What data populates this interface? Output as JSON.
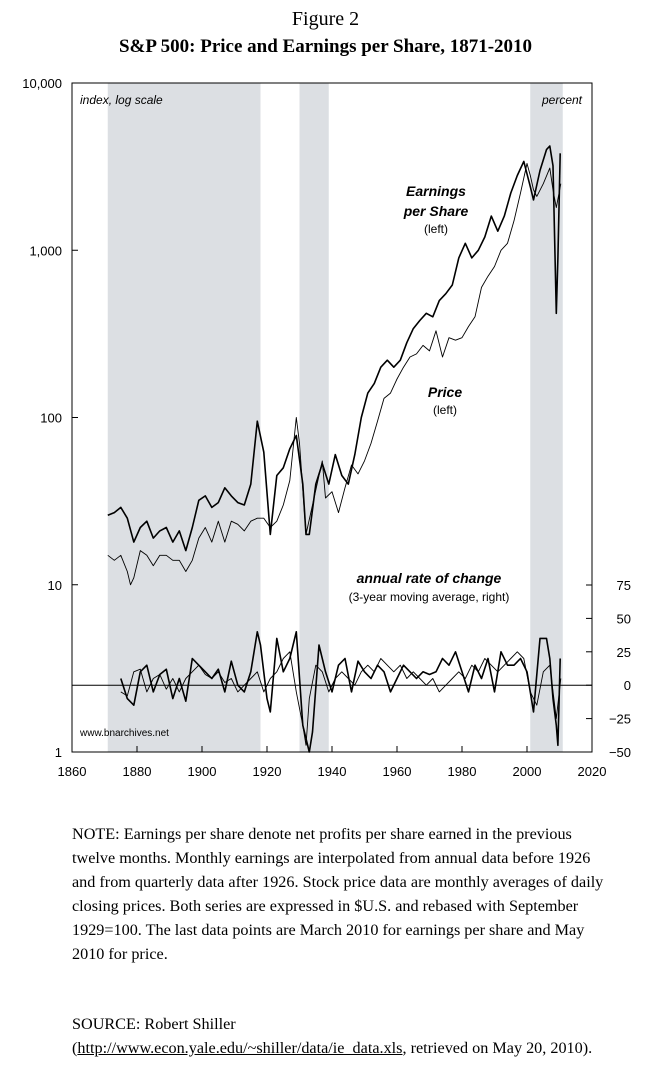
{
  "figure_label": "Figure 2",
  "title": "S&P 500: Price and Earnings per Share, 1871-2010",
  "chart_data": {
    "type": "line",
    "title": "S&P 500: Price and Earnings per Share, 1871-2010",
    "left_axis": {
      "label": "index, log scale",
      "scale": "log",
      "range": [
        1,
        10000
      ],
      "ticks": [
        1,
        10,
        100,
        1000,
        10000
      ],
      "tick_labels": [
        "1",
        "10",
        "100",
        "1,000",
        "10,000"
      ]
    },
    "right_axis": {
      "label": "percent",
      "range": [
        -50,
        75
      ],
      "ticks": [
        -50,
        -25,
        0,
        25,
        50,
        75
      ],
      "tick_labels": [
        "−50",
        "−25",
        "0",
        "25",
        "50",
        "75"
      ]
    },
    "x_axis": {
      "range": [
        1860,
        2020
      ],
      "ticks": [
        1860,
        1880,
        1900,
        1920,
        1940,
        1960,
        1980,
        2000,
        2020
      ],
      "tick_labels": [
        "1860",
        "1880",
        "1900",
        "1920",
        "1940",
        "1960",
        "1980",
        "2000",
        "2020"
      ]
    },
    "shaded_periods": [
      [
        1871,
        1918
      ],
      [
        1930,
        1939
      ],
      [
        2001,
        2011
      ]
    ],
    "series_labels": {
      "earnings": [
        "Earnings",
        "per Share",
        "(left)"
      ],
      "price": [
        "Price",
        "(left)"
      ],
      "rate": [
        "annual rate of change",
        "(3-year moving average, right)"
      ]
    },
    "series": [
      {
        "name": "Earnings per Share",
        "axis": "left",
        "x": [
          1871,
          1873,
          1875,
          1877,
          1879,
          1881,
          1883,
          1885,
          1887,
          1889,
          1891,
          1893,
          1895,
          1897,
          1899,
          1901,
          1903,
          1905,
          1907,
          1909,
          1911,
          1913,
          1915,
          1917,
          1919,
          1921,
          1923,
          1925,
          1927,
          1929,
          1931,
          1932,
          1933,
          1935,
          1937,
          1939,
          1941,
          1943,
          1945,
          1947,
          1949,
          1951,
          1953,
          1955,
          1957,
          1959,
          1961,
          1963,
          1965,
          1967,
          1969,
          1971,
          1973,
          1975,
          1977,
          1979,
          1981,
          1983,
          1985,
          1987,
          1989,
          1991,
          1993,
          1995,
          1997,
          1999,
          2001,
          2002,
          2004,
          2006,
          2007,
          2008,
          2009,
          2009.5,
          2010.2
        ],
        "values": [
          26,
          27,
          29,
          25,
          18,
          22,
          24,
          19,
          21,
          22,
          18,
          21,
          16,
          22,
          32,
          34,
          29,
          31,
          38,
          34,
          31,
          30,
          40,
          95,
          62,
          20,
          45,
          50,
          65,
          78,
          40,
          20,
          20,
          40,
          53,
          40,
          60,
          45,
          40,
          60,
          100,
          140,
          160,
          200,
          220,
          200,
          220,
          280,
          340,
          380,
          420,
          400,
          500,
          550,
          620,
          900,
          1100,
          900,
          1000,
          1200,
          1600,
          1300,
          1600,
          2200,
          2800,
          3400,
          2400,
          2000,
          3000,
          4000,
          4200,
          3200,
          420,
          900,
          3800
        ]
      },
      {
        "name": "Price",
        "axis": "left",
        "x": [
          1871,
          1873,
          1875,
          1877,
          1878,
          1879,
          1881,
          1883,
          1885,
          1887,
          1889,
          1891,
          1893,
          1895,
          1897,
          1899,
          1901,
          1903,
          1905,
          1907,
          1909,
          1911,
          1913,
          1915,
          1917,
          1919,
          1921,
          1923,
          1925,
          1927,
          1929,
          1930,
          1932,
          1934,
          1936,
          1937,
          1938,
          1940,
          1942,
          1944,
          1946,
          1948,
          1950,
          1952,
          1954,
          1956,
          1958,
          1960,
          1962,
          1964,
          1966,
          1968,
          1970,
          1972,
          1974,
          1976,
          1978,
          1980,
          1982,
          1984,
          1986,
          1988,
          1990,
          1992,
          1994,
          1996,
          1998,
          2000,
          2001,
          2002,
          2003,
          2005,
          2007,
          2008,
          2009,
          2010.4
        ],
        "values": [
          15,
          14,
          15,
          12,
          10,
          11,
          16,
          15,
          13,
          15,
          15,
          14,
          14,
          12,
          14,
          19,
          22,
          18,
          24,
          18,
          24,
          23,
          21,
          24,
          25,
          25,
          22,
          24,
          30,
          42,
          100,
          70,
          20,
          30,
          45,
          55,
          33,
          36,
          27,
          38,
          52,
          46,
          55,
          70,
          95,
          130,
          140,
          170,
          200,
          230,
          240,
          270,
          250,
          330,
          230,
          300,
          290,
          300,
          350,
          400,
          600,
          700,
          800,
          1000,
          1100,
          1500,
          2200,
          3300,
          2800,
          2300,
          2100,
          2500,
          3100,
          2300,
          1800,
          2500
        ]
      },
      {
        "name": "Earnings annual rate of change",
        "axis": "right",
        "x": [
          1875,
          1877,
          1879,
          1881,
          1883,
          1885,
          1887,
          1889,
          1891,
          1893,
          1895,
          1897,
          1899,
          1901,
          1903,
          1905,
          1907,
          1909,
          1911,
          1913,
          1915,
          1917,
          1918,
          1920,
          1921,
          1923,
          1925,
          1927,
          1929,
          1931,
          1932,
          1933,
          1934,
          1936,
          1938,
          1940,
          1942,
          1944,
          1946,
          1948,
          1950,
          1952,
          1954,
          1956,
          1958,
          1960,
          1962,
          1964,
          1966,
          1968,
          1970,
          1972,
          1974,
          1976,
          1978,
          1980,
          1982,
          1984,
          1986,
          1988,
          1990,
          1992,
          1994,
          1996,
          1998,
          2000,
          2002,
          2004,
          2006,
          2007,
          2008,
          2009,
          2009.5,
          2010.2
        ],
        "values": [
          5,
          -10,
          -15,
          10,
          15,
          -5,
          8,
          12,
          -10,
          5,
          -12,
          20,
          15,
          10,
          5,
          12,
          -5,
          18,
          0,
          -5,
          10,
          40,
          30,
          -10,
          -20,
          35,
          10,
          20,
          40,
          -30,
          -40,
          -50,
          -35,
          30,
          10,
          -5,
          15,
          20,
          -5,
          18,
          10,
          5,
          15,
          10,
          -5,
          5,
          15,
          10,
          5,
          10,
          8,
          10,
          20,
          15,
          25,
          10,
          -5,
          15,
          5,
          20,
          -5,
          25,
          15,
          15,
          20,
          10,
          -20,
          35,
          35,
          20,
          -10,
          -30,
          -45,
          20
        ]
      },
      {
        "name": "Price annual rate of change",
        "axis": "right",
        "x": [
          1875,
          1877,
          1879,
          1881,
          1883,
          1885,
          1887,
          1889,
          1891,
          1893,
          1895,
          1897,
          1899,
          1901,
          1903,
          1905,
          1907,
          1909,
          1911,
          1913,
          1915,
          1917,
          1919,
          1921,
          1923,
          1925,
          1927,
          1929,
          1931,
          1932,
          1933,
          1935,
          1937,
          1939,
          1941,
          1943,
          1945,
          1947,
          1949,
          1951,
          1953,
          1955,
          1957,
          1959,
          1961,
          1963,
          1965,
          1967,
          1969,
          1971,
          1973,
          1975,
          1977,
          1979,
          1981,
          1983,
          1985,
          1987,
          1989,
          1991,
          1993,
          1995,
          1997,
          1999,
          2001,
          2003,
          2005,
          2007,
          2009,
          2010.4
        ],
        "values": [
          -5,
          -8,
          10,
          12,
          -5,
          5,
          8,
          -3,
          5,
          -5,
          5,
          10,
          15,
          8,
          5,
          10,
          2,
          5,
          -5,
          0,
          5,
          10,
          -5,
          5,
          10,
          20,
          25,
          -5,
          -30,
          -45,
          -10,
          15,
          10,
          -5,
          5,
          10,
          5,
          0,
          10,
          15,
          10,
          20,
          15,
          10,
          15,
          5,
          10,
          5,
          0,
          5,
          -5,
          0,
          5,
          10,
          5,
          15,
          10,
          20,
          15,
          10,
          15,
          20,
          25,
          20,
          -5,
          -15,
          10,
          15,
          -25,
          5
        ]
      }
    ],
    "watermark": "www.bnarchives.net",
    "grid": false
  },
  "note": "NOTE: Earnings per share denote net profits per share earned in the previous twelve months. Monthly earnings are interpolated from annual data before 1926 and from quarterly data after 1926. Stock price data are monthly averages of daily closing prices. Both series are expressed in $U.S. and rebased with September 1929=100. The last data points are March 2010 for earnings per share and May 2010 for price.",
  "source_prefix": "SOURCE: Robert Shiller",
  "source_url": "http://www.econ.yale.edu/~shiller/data/ie_data.xls",
  "source_suffix": ", retrieved on May 20, 2010).",
  "source_open_paren": "("
}
